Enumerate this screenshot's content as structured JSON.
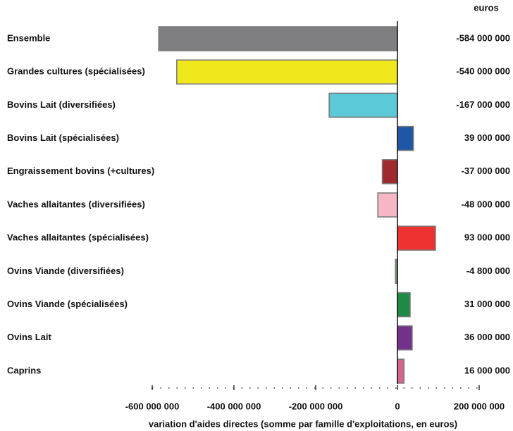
{
  "chart_data": {
    "type": "barh",
    "unit_label": "euros",
    "xlabel": "variation d'aides directes (somme par famille d'exploitations, en euros)",
    "categories": [
      "Ensemble",
      "Grandes cultures (spécialisées)",
      "Bovins Lait (diversifiées)",
      "Bovins Lait (spécialisées)",
      "Engraissement bovins (+cultures)",
      "Vaches allaitantes (diversifiées)",
      "Vaches allaitantes (spécialisées)",
      "Ovins Viande (diversifiées)",
      "Ovins Viande (spécialisées)",
      "Ovins Lait",
      "Caprins"
    ],
    "values": [
      -584000000,
      -540000000,
      -167000000,
      39000000,
      -37000000,
      -48000000,
      93000000,
      -4800000,
      31000000,
      36000000,
      16000000
    ],
    "value_labels": [
      "-584 000 000",
      "-540 000 000",
      "-167 000 000",
      "39 000 000",
      "-37 000 000",
      "-48 000 000",
      "93 000 000",
      "-4 800 000",
      "31 000 000",
      "36 000 000",
      "16 000 000"
    ],
    "colors": [
      "#7f7f81",
      "#efe81c",
      "#5cc9d9",
      "#1f57a6",
      "#9e2a30",
      "#f6b7c4",
      "#ec3231",
      "#7b9c6e",
      "#1d8a45",
      "#74318c",
      "#d8638b"
    ],
    "xlim": [
      -600000000,
      200000000
    ],
    "xticks": [
      {
        "value": -600000000,
        "label": "-600 000 000"
      },
      {
        "value": -400000000,
        "label": "-400 000 000"
      },
      {
        "value": -200000000,
        "label": "-200 000 000"
      },
      0,
      {
        "value": 200000000,
        "label": "200 000 000"
      }
    ]
  }
}
